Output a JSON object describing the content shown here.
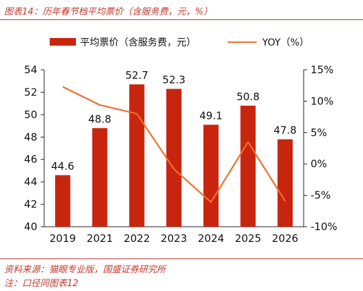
{
  "header": {
    "title": "图表14：历年春节档平均票价（含服务费，元，%）"
  },
  "footer": {
    "source": "资料来源：猫眼专业版，国盛证券研究所",
    "note": "注：口径同图表12"
  },
  "chart_data": {
    "type": "bar+line",
    "categories": [
      "2019",
      "2021",
      "2022",
      "2023",
      "2024",
      "2025",
      "2026"
    ],
    "series": [
      {
        "name": "平均票价（含服务费，元）",
        "type": "bar",
        "axis": "left",
        "values": [
          44.6,
          48.8,
          52.7,
          52.3,
          49.1,
          50.8,
          47.8
        ],
        "data_labels": [
          "44.6",
          "48.8",
          "52.7",
          "52.3",
          "49.1",
          "50.8",
          "47.8"
        ],
        "color": "#c8250f"
      },
      {
        "name": "YOY（%）",
        "type": "line",
        "axis": "right",
        "values": [
          12.3,
          9.4,
          8.0,
          -0.8,
          -6.1,
          3.5,
          -5.9
        ],
        "color": "#ef6f2a"
      }
    ],
    "y_left": {
      "range": [
        40,
        54
      ],
      "ticks": [
        "40",
        "42",
        "44",
        "46",
        "48",
        "50",
        "52",
        "54"
      ]
    },
    "y_right": {
      "range": [
        -10,
        15
      ],
      "ticks": [
        "-10%",
        "-5%",
        "0%",
        "5%",
        "10%",
        "15%"
      ]
    },
    "grid": false,
    "legend": "top"
  }
}
